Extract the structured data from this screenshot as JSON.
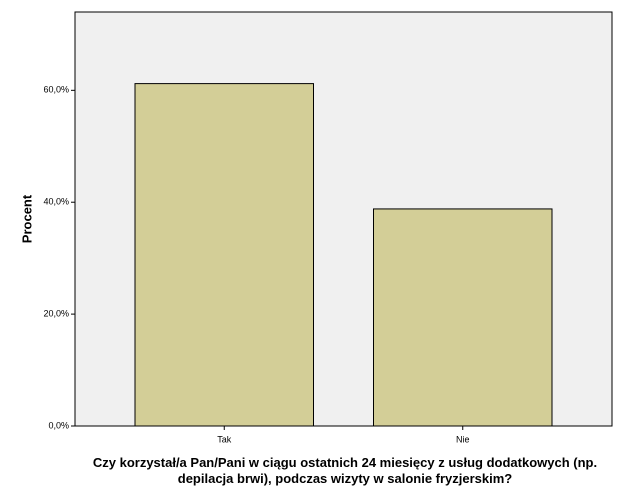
{
  "chart_data": {
    "type": "bar",
    "y_label": "Procent",
    "x_label": "Czy korzystał/a Pan/Pani w ciągu ostatnich 24 miesięcy z usług dodatkowych (np. depilacja brwi), podczas wizyty w salonie fryzjerskim?",
    "categories": [
      "Tak",
      "Nie"
    ],
    "values": [
      61.2,
      38.8
    ],
    "color": "#d3ce97",
    "ylim": [
      0,
      74
    ],
    "yticks": [
      {
        "value": 0,
        "label": "0,0%"
      },
      {
        "value": 20,
        "label": "20,0%"
      },
      {
        "value": 40,
        "label": "40,0%"
      },
      {
        "value": 60,
        "label": "60,0%"
      }
    ],
    "grid": false
  }
}
